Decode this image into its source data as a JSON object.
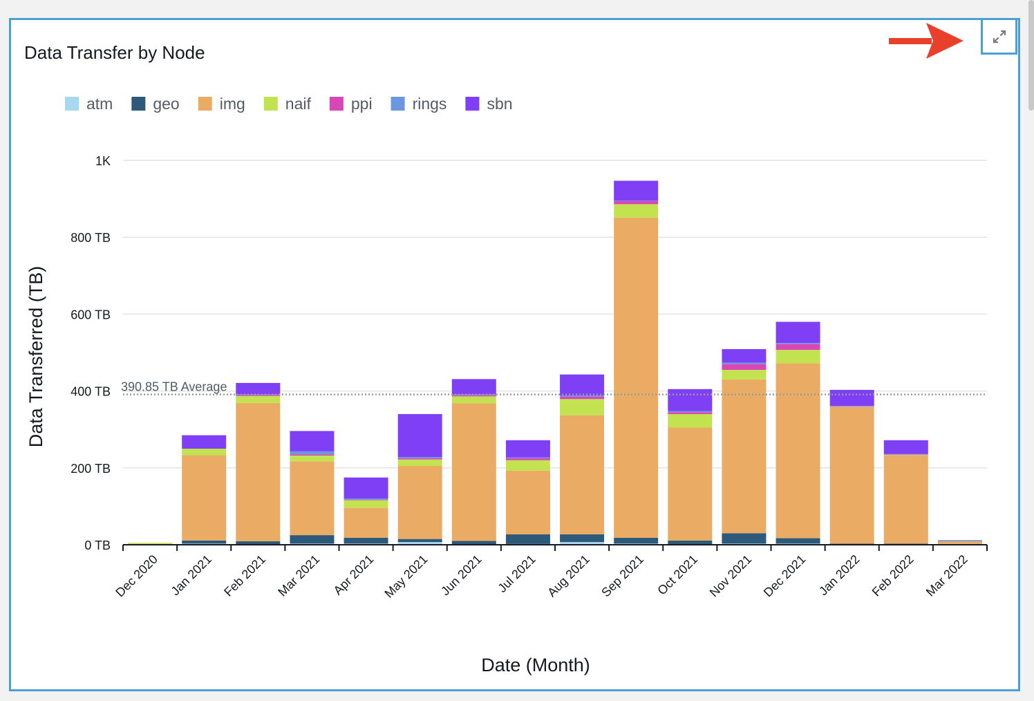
{
  "panel": {
    "title": "Data Transfer by Node",
    "expand_icon": "expand-icon",
    "annotation_icon": "red-arrow-icon"
  },
  "chart_data": {
    "type": "bar",
    "stacked": true,
    "title": "Data Transfer by Node",
    "xlabel": "Date (Month)",
    "ylabel": "Data Transferred (TB)",
    "ylim": [
      0,
      1000
    ],
    "yticks": [
      0,
      200,
      400,
      600,
      800,
      1000
    ],
    "ytick_labels": [
      "0 TB",
      "200 TB",
      "400 TB",
      "600 TB",
      "800 TB",
      "1K"
    ],
    "grid": true,
    "legend_position": "top-left",
    "categories": [
      "Dec 2020",
      "Jan 2021",
      "Feb 2021",
      "Mar 2021",
      "Apr 2021",
      "May 2021",
      "Jun 2021",
      "Jul 2021",
      "Aug 2021",
      "Sep 2021",
      "Oct 2021",
      "Nov 2021",
      "Dec 2021",
      "Jan 2022",
      "Feb 2022",
      "Mar 2022"
    ],
    "series": [
      {
        "name": "atm",
        "color": "#a8d8f0",
        "values": [
          0,
          3,
          1,
          3,
          3,
          7,
          1,
          2,
          7,
          3,
          1,
          3,
          3,
          1,
          1,
          1
        ]
      },
      {
        "name": "geo",
        "color": "#2d5a7b",
        "values": [
          0,
          8,
          8,
          22,
          15,
          8,
          9,
          25,
          20,
          15,
          10,
          27,
          14,
          2,
          2,
          1
        ]
      },
      {
        "name": "img",
        "color": "#eaac65",
        "values": [
          2,
          222,
          360,
          192,
          78,
          190,
          358,
          166,
          310,
          833,
          294,
          400,
          455,
          355,
          230,
          7
        ]
      },
      {
        "name": "naif",
        "color": "#c2e34f",
        "values": [
          3,
          17,
          18,
          15,
          20,
          17,
          18,
          27,
          42,
          35,
          35,
          25,
          35,
          1,
          1,
          0
        ]
      },
      {
        "name": "ppi",
        "color": "#d946b6",
        "values": [
          0,
          0,
          3,
          3,
          1,
          3,
          3,
          5,
          6,
          8,
          5,
          15,
          15,
          1,
          1,
          0
        ]
      },
      {
        "name": "rings",
        "color": "#6b96e0",
        "values": [
          0,
          0,
          1,
          8,
          3,
          3,
          2,
          2,
          3,
          1,
          3,
          4,
          3,
          1,
          1,
          3
        ]
      },
      {
        "name": "sbn",
        "color": "#7f40f5",
        "values": [
          0,
          35,
          30,
          53,
          55,
          112,
          40,
          45,
          55,
          52,
          57,
          35,
          55,
          42,
          36,
          0
        ]
      }
    ],
    "average": {
      "value": 390.85,
      "label": "390.85 TB Average"
    }
  }
}
